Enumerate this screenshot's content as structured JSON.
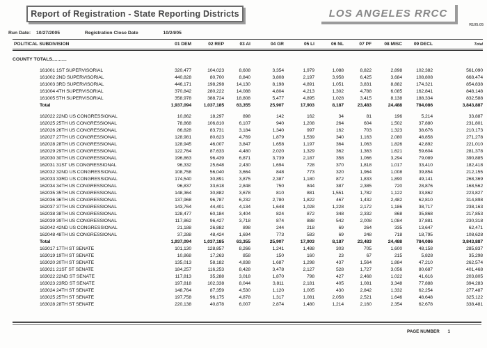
{
  "header": {
    "title": "Report of Registration - State Reporting Districts",
    "agency": "LOS ANGELES RRCC",
    "report_id": "R105.05",
    "run_date_label": "Run Date:",
    "run_date": "10/27/2005",
    "close_date_label": "Registration Close Date",
    "close_date": "10/24/05"
  },
  "table": {
    "subdivision_header": "POLITICAL SUBDIVISION",
    "columns": [
      "01 DEM",
      "02 REP",
      "03 AI",
      "04 GR",
      "05 LI",
      "06 NL",
      "07 PF",
      "08 MISC",
      "09 DECL",
      "Total"
    ],
    "section_label": "COUNTY TOTALS...........",
    "total_label": "Total",
    "sections": [
      {
        "gap_before": false,
        "rows": [
          {
            "name": "161001 1ST SUPERVISORIAL",
            "values": [
              "320,477",
              "104,023",
              "8,608",
              "3,354",
              "1,979",
              "1,088",
              "8,822",
              "2,898",
              "102,382",
              "561,090"
            ]
          },
          {
            "name": "161002 2ND SUPERVISORIAL",
            "values": [
              "440,828",
              "80,700",
              "8,840",
              "3,808",
              "2,197",
              "3,958",
              "6,425",
              "3,684",
              "108,808",
              "668,474"
            ]
          },
          {
            "name": "161003 3RD SUPERVISORIAL",
            "values": [
              "446,171",
              "198,298",
              "14,130",
              "8,198",
              "4,891",
              "1,051",
              "3,831",
              "8,882",
              "174,321",
              "854,838"
            ]
          },
          {
            "name": "161004 4TH SUPERVISORIAL",
            "values": [
              "370,842",
              "280,222",
              "14,088",
              "4,804",
              "4,213",
              "1,302",
              "4,788",
              "6,085",
              "162,841",
              "848,148"
            ]
          },
          {
            "name": "161005 5TH SUPERVISORIAL",
            "values": [
              "358,978",
              "388,724",
              "18,808",
              "5,477",
              "4,895",
              "1,028",
              "3,415",
              "8,138",
              "188,334",
              "832,588"
            ]
          }
        ],
        "total": [
          "1,937,094",
          "1,037,185",
          "63,355",
          "25,907",
          "17,903",
          "8,187",
          "23,483",
          "24,488",
          "784,086",
          "3,843,887"
        ]
      },
      {
        "gap_before": true,
        "rows": [
          {
            "name": "162022 22ND US CONGRESSIONAL",
            "values": [
              "10,862",
              "18,297",
              "898",
              "142",
              "162",
              "34",
              "81",
              "196",
              "5,214",
              "33,887"
            ]
          },
          {
            "name": "162025 25TH US CONGRESSIONAL",
            "values": [
              "78,868",
              "106,810",
              "6,107",
              "940",
              "1,208",
              "264",
              "604",
              "1,502",
              "37,880",
              "231,801"
            ]
          },
          {
            "name": "162026 26TH US CONGRESSIONAL",
            "values": [
              "86,828",
              "83,731",
              "3,184",
              "1,340",
              "997",
              "162",
              "703",
              "1,323",
              "38,676",
              "210,173"
            ]
          },
          {
            "name": "162027 27TH US CONGRESSIONAL",
            "values": [
              "128,981",
              "80,623",
              "4,769",
              "1,879",
              "1,539",
              "340",
              "1,163",
              "2,080",
              "48,858",
              "271,278"
            ]
          },
          {
            "name": "162028 28TH US CONGRESSIONAL",
            "values": [
              "128,945",
              "46,007",
              "3,847",
              "1,658",
              "1,197",
              "364",
              "1,063",
              "1,826",
              "42,892",
              "221,010"
            ]
          },
          {
            "name": "162029 29TH US CONGRESSIONAL",
            "values": [
              "122,764",
              "87,633",
              "4,480",
              "2,020",
              "1,329",
              "362",
              "1,363",
              "1,621",
              "59,604",
              "281,378"
            ]
          },
          {
            "name": "162030 30TH US CONGRESSIONAL",
            "values": [
              "196,863",
              "96,439",
              "6,871",
              "3,739",
              "2,187",
              "358",
              "1,066",
              "3,294",
              "79,089",
              "390,885"
            ]
          },
          {
            "name": "162031 31ST US CONGRESSIONAL",
            "values": [
              "96,332",
              "25,648",
              "2,430",
              "1,694",
              "728",
              "370",
              "1,818",
              "1,017",
              "33,410",
              "182,418"
            ]
          },
          {
            "name": "162032 32ND US CONGRESSIONAL",
            "values": [
              "108,758",
              "56,040",
              "3,664",
              "848",
              "773",
              "320",
              "1,964",
              "1,008",
              "39,854",
              "212,155"
            ]
          },
          {
            "name": "162033 33RD US CONGRESSIONAL",
            "values": [
              "174,540",
              "30,891",
              "3,875",
              "2,387",
              "1,180",
              "872",
              "1,833",
              "1,890",
              "49,141",
              "268,369"
            ]
          },
          {
            "name": "162034 34TH US CONGRESSIONAL",
            "values": [
              "96,837",
              "33,618",
              "2,848",
              "750",
              "844",
              "387",
              "2,385",
              "720",
              "28,876",
              "168,562"
            ]
          },
          {
            "name": "162035 35TH US CONGRESSIONAL",
            "values": [
              "148,364",
              "30,882",
              "3,678",
              "810",
              "881",
              "1,551",
              "1,782",
              "1,122",
              "33,862",
              "223,827"
            ]
          },
          {
            "name": "162036 36TH US CONGRESSIONAL",
            "values": [
              "137,968",
              "96,787",
              "6,232",
              "2,780",
              "1,822",
              "467",
              "1,432",
              "2,482",
              "62,810",
              "314,898"
            ]
          },
          {
            "name": "162037 37TH US CONGRESSIONAL",
            "values": [
              "143,764",
              "44,401",
              "4,134",
              "1,648",
              "1,028",
              "1,228",
              "2,172",
              "1,186",
              "38,717",
              "238,163"
            ]
          },
          {
            "name": "162038 38TH US CONGRESSIONAL",
            "values": [
              "128,477",
              "60,184",
              "3,404",
              "824",
              "872",
              "348",
              "2,332",
              "868",
              "35,868",
              "217,853"
            ]
          },
          {
            "name": "162039 39TH US CONGRESSIONAL",
            "values": [
              "117,862",
              "96,427",
              "3,718",
              "874",
              "888",
              "542",
              "2,008",
              "1,084",
              "37,881",
              "230,318"
            ]
          },
          {
            "name": "162042 42ND US CONGRESSIONAL",
            "values": [
              "21,188",
              "26,882",
              "898",
              "244",
              "218",
              "69",
              "264",
              "335",
              "13,647",
              "62,471"
            ]
          },
          {
            "name": "162048 48TH US CONGRESSIONAL",
            "values": [
              "37,288",
              "48,424",
              "1,694",
              "773",
              "583",
              "69",
              "248",
              "718",
              "18,795",
              "108,628"
            ]
          }
        ],
        "total": [
          "1,937,094",
          "1,037,185",
          "63,355",
          "25,907",
          "17,903",
          "8,187",
          "23,483",
          "24,488",
          "784,086",
          "3,843,887"
        ]
      },
      {
        "gap_before": false,
        "rows": [
          {
            "name": "163017 17TH ST SENATE",
            "values": [
              "101,130",
              "128,857",
              "8,266",
              "1,241",
              "1,488",
              "303",
              "705",
              "1,600",
              "48,158",
              "285,837"
            ]
          },
          {
            "name": "163019 19TH ST SENATE",
            "values": [
              "10,868",
              "17,263",
              "858",
              "150",
              "160",
              "23",
              "67",
              "215",
              "5,828",
              "35,298"
            ]
          },
          {
            "name": "163020 20TH ST SENATE",
            "values": [
              "135,013",
              "58,182",
              "4,838",
              "1,687",
              "1,298",
              "437",
              "1,564",
              "1,884",
              "47,210",
              "262,574"
            ]
          },
          {
            "name": "163021 21ST ST SENATE",
            "values": [
              "184,257",
              "116,253",
              "8,428",
              "3,478",
              "2,127",
              "528",
              "1,727",
              "3,056",
              "80,687",
              "401,468"
            ]
          },
          {
            "name": "163022 22ND ST SENATE",
            "values": [
              "117,813",
              "35,288",
              "3,018",
              "1,870",
              "798",
              "427",
              "2,468",
              "1,022",
              "41,616",
              "203,805"
            ]
          },
          {
            "name": "163023 23RD ST SENATE",
            "values": [
              "197,818",
              "102,338",
              "8,044",
              "3,811",
              "2,181",
              "405",
              "1,081",
              "3,348",
              "77,888",
              "394,283"
            ]
          },
          {
            "name": "163024 24TH ST SENATE",
            "values": [
              "148,764",
              "87,359",
              "4,530",
              "1,120",
              "1,005",
              "430",
              "2,842",
              "1,332",
              "62,254",
              "277,487"
            ]
          },
          {
            "name": "163025 25TH ST SENATE",
            "values": [
              "197,758",
              "96,175",
              "4,878",
              "1,317",
              "1,081",
              "2,058",
              "2,521",
              "1,646",
              "48,648",
              "325,122"
            ]
          },
          {
            "name": "163028 28TH ST SENATE",
            "values": [
              "220,138",
              "40,878",
              "6,007",
              "2,874",
              "1,480",
              "1,214",
              "2,160",
              "2,354",
              "62,678",
              "338,481"
            ]
          }
        ],
        "total": null
      }
    ]
  },
  "footer": {
    "page_label": "PAGE NUMBER",
    "page_number": "1"
  }
}
